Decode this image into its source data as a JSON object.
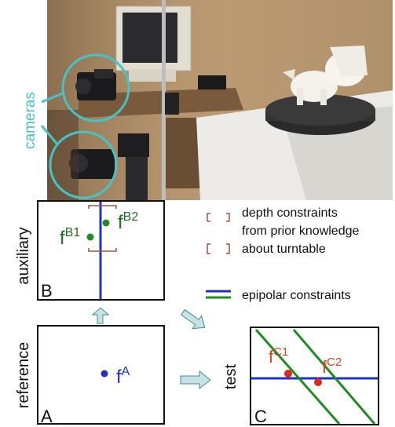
{
  "photo": {
    "cameras_label": "cameras"
  },
  "panels": {
    "auxiliary": {
      "side_label": "auxiliary",
      "corner_label": "B"
    },
    "reference": {
      "side_label": "reference",
      "corner_label": "A"
    },
    "test": {
      "side_label": "test",
      "corner_label": "C"
    }
  },
  "points": {
    "fB1": {
      "base": "f",
      "sup": "B1"
    },
    "fB2": {
      "base": "f",
      "sup": "B2"
    },
    "fA": {
      "base": "f",
      "sup": "A"
    },
    "fC1": {
      "base": "f",
      "sup": "C1"
    },
    "fC2": {
      "base": "f",
      "sup": "C2"
    }
  },
  "legend": {
    "depth_line1": "depth constraints",
    "depth_line2": "from prior knowledge",
    "depth_line3": "about turntable",
    "epipolar": "epipolar constraints"
  },
  "colors": {
    "cyan": "#46c3c8",
    "blue": "#1e32c8",
    "green": "#1e8c1e",
    "red": "#e0281e",
    "brown": "#a0523c",
    "text_green": "#1e6e1e",
    "text_blue": "#1e32c8",
    "text_red": "#d2461e"
  }
}
